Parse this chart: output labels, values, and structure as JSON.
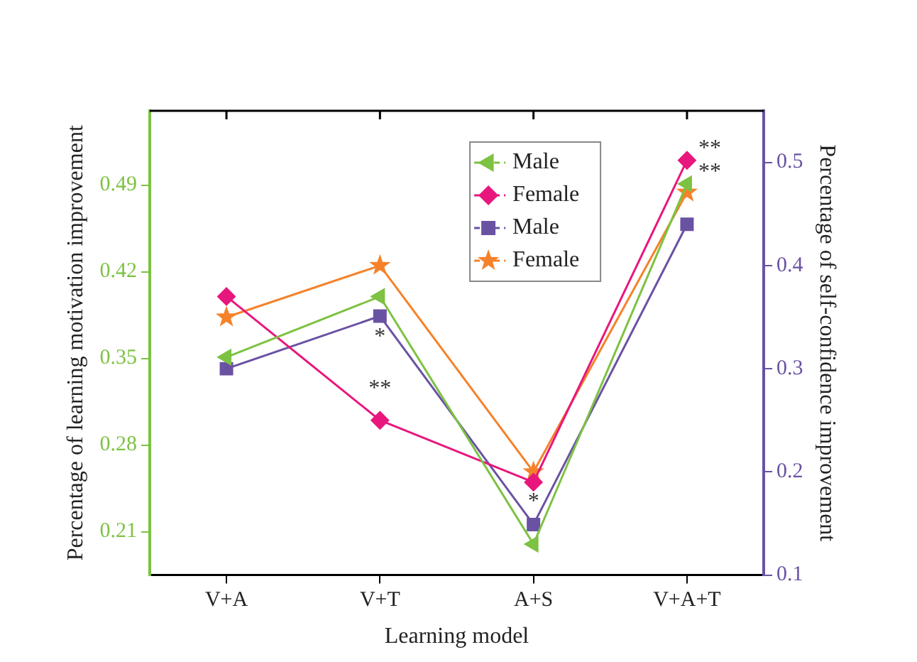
{
  "chart_data": {
    "type": "line",
    "xlabel": "Learning model",
    "ylabel": "Percentage of learning motivation improvement",
    "y2label": "Percentage of self-confidence improvement",
    "categories": [
      "V+A",
      "V+T",
      "A+S",
      "V+A+T"
    ],
    "series": [
      {
        "name": "Male",
        "color": "#7dc242",
        "marker": "triangle",
        "values": [
          0.351,
          0.4,
          0.2,
          0.491
        ]
      },
      {
        "name": "Female",
        "color": "#e8177d",
        "marker": "diamond",
        "values": [
          0.4,
          0.3,
          0.25,
          0.51
        ]
      },
      {
        "name": "Male",
        "color": "#6a52a3",
        "marker": "square",
        "axis": "y2",
        "values": [
          0.3,
          0.351,
          0.149,
          0.44
        ]
      },
      {
        "name": "Female",
        "color": "#f5822a",
        "marker": "star",
        "axis": "y2",
        "values": [
          0.35,
          0.4,
          0.2,
          0.471
        ]
      }
    ],
    "ylim": [
      0.175,
      0.55
    ],
    "yticks": [
      0.21,
      0.28,
      0.35,
      0.42,
      0.49
    ],
    "y2lim": [
      0.1,
      0.55
    ],
    "y2ticks": [
      0.1,
      0.2,
      0.3,
      0.4,
      0.5
    ],
    "legend": "top right",
    "grid": false,
    "line_style": "solid",
    "annotations": [
      {
        "text": "**",
        "x": "V+T",
        "y": 0.3
      },
      {
        "text": "*",
        "x": "V+T",
        "y": 0.4
      },
      {
        "text": "*",
        "x": "A+S",
        "y": 0.25
      },
      {
        "text": "**",
        "x": "V+A+T",
        "y": 0.51
      },
      {
        "text": "**",
        "x": "V+A+T",
        "y": 0.491
      }
    ]
  }
}
